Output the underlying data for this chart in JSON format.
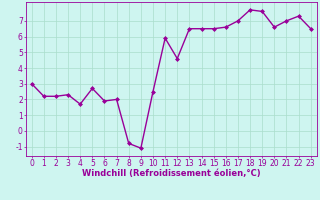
{
  "x": [
    0,
    1,
    2,
    3,
    4,
    5,
    6,
    7,
    8,
    9,
    10,
    11,
    12,
    13,
    14,
    15,
    16,
    17,
    18,
    19,
    20,
    21,
    22,
    23
  ],
  "y": [
    3.0,
    2.2,
    2.2,
    2.3,
    1.7,
    2.7,
    1.9,
    2.0,
    -0.8,
    -1.1,
    2.5,
    5.9,
    4.6,
    6.5,
    6.5,
    6.5,
    6.6,
    7.0,
    7.7,
    7.6,
    6.6,
    7.0,
    7.3,
    6.5
  ],
  "line_color": "#990099",
  "marker": "D",
  "marker_size": 2,
  "line_width": 1.0,
  "bg_color": "#cef5f0",
  "grid_color": "#aaddcc",
  "xlabel": "Windchill (Refroidissement éolien,°C)",
  "xlabel_color": "#990099",
  "xlabel_fontsize": 6.0,
  "tick_color": "#990099",
  "tick_fontsize": 5.5,
  "ylim": [
    -1.6,
    8.2
  ],
  "xlim": [
    -0.5,
    23.5
  ],
  "yticks": [
    -1,
    0,
    1,
    2,
    3,
    4,
    5,
    6,
    7
  ],
  "xticks": [
    0,
    1,
    2,
    3,
    4,
    5,
    6,
    7,
    8,
    9,
    10,
    11,
    12,
    13,
    14,
    15,
    16,
    17,
    18,
    19,
    20,
    21,
    22,
    23
  ]
}
